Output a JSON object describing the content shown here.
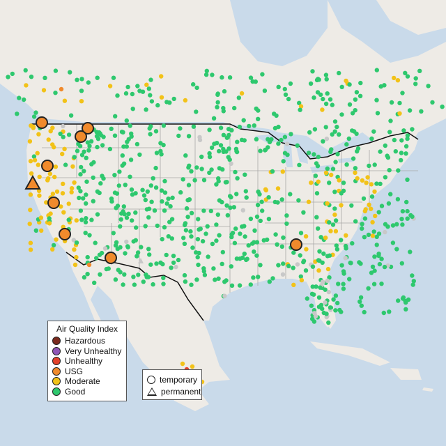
{
  "map": {
    "colors": {
      "water": "#c9daea",
      "land": "#eeebe6",
      "border": "#111111",
      "state_line": "#a7a7a7",
      "good": "#2ec86e",
      "moderate": "#f2c218",
      "usg": "#f08a2c",
      "unhealthy": "#e3412a",
      "very_unhealthy": "#8e56b6",
      "hazardous": "#7a2a1e",
      "no_data": "#c8c8c8"
    }
  },
  "legend": {
    "title": "Air Quality Index",
    "categories": [
      {
        "label": "Hazardous",
        "color": "#7a2a1e"
      },
      {
        "label": "Very Unhealthy",
        "color": "#8e56b6"
      },
      {
        "label": "Unhealthy",
        "color": "#e3412a"
      },
      {
        "label": "USG",
        "color": "#f08a2c"
      },
      {
        "label": "Moderate",
        "color": "#f2c218"
      },
      {
        "label": "Good",
        "color": "#2ec86e"
      }
    ]
  },
  "site_legend": {
    "temporary": "temporary",
    "permanent": "permanent"
  }
}
